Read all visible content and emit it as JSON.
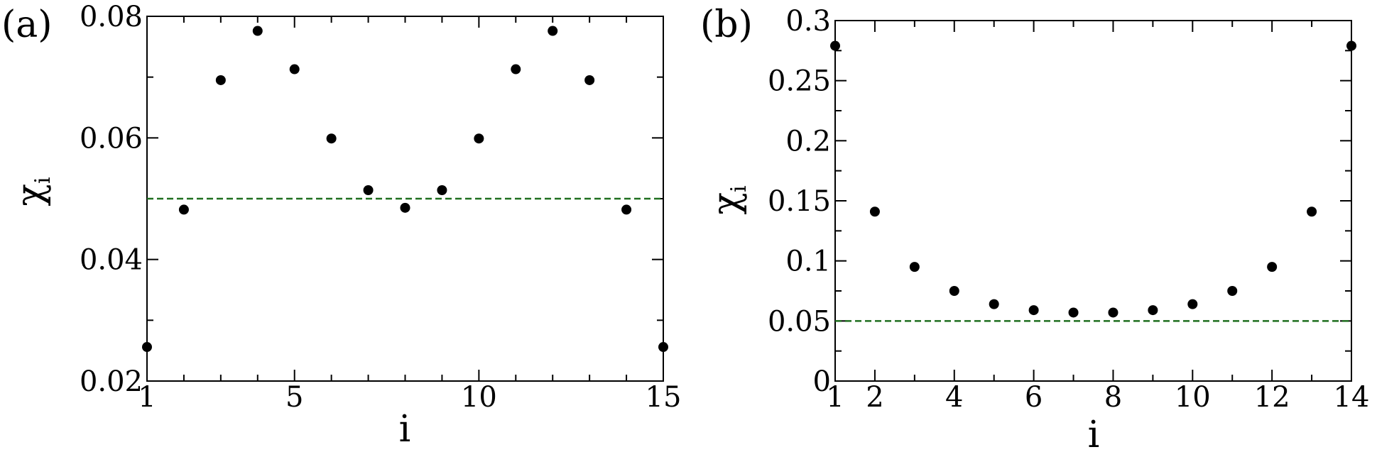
{
  "chart_data": [
    {
      "type": "scatter",
      "panel_label": "(a)",
      "xlabel": "i",
      "ylabel": {
        "symbol": "χ",
        "subscript": "i"
      },
      "xlim": [
        1,
        15
      ],
      "ylim": [
        0.02,
        0.08
      ],
      "xticks": [
        {
          "value": 1,
          "label": "1"
        },
        {
          "value": 5,
          "label": "5"
        },
        {
          "value": 10,
          "label": "10"
        },
        {
          "value": 15,
          "label": "15"
        }
      ],
      "xminor": [
        2,
        3,
        4,
        6,
        7,
        8,
        9,
        11,
        12,
        13,
        14
      ],
      "yticks": [
        {
          "value": 0.02,
          "label": "0.02"
        },
        {
          "value": 0.04,
          "label": "0.04"
        },
        {
          "value": 0.06,
          "label": "0.06"
        },
        {
          "value": 0.08,
          "label": "0.08"
        }
      ],
      "yminor": [
        0.03,
        0.05,
        0.07
      ],
      "x": [
        1,
        2,
        3,
        4,
        5,
        6,
        7,
        8,
        9,
        10,
        11,
        12,
        13,
        14,
        15
      ],
      "y": [
        0.0256,
        0.0482,
        0.0695,
        0.0776,
        0.0713,
        0.0599,
        0.0514,
        0.0485,
        0.0514,
        0.0599,
        0.0713,
        0.0776,
        0.0695,
        0.0482,
        0.0256
      ],
      "reference_line": {
        "y": 0.05,
        "color": "#1f6f1f",
        "style": "dashed"
      },
      "marker_color": "#000000"
    },
    {
      "type": "scatter",
      "panel_label": "(b)",
      "xlabel": "i",
      "ylabel": {
        "symbol": "χ",
        "subscript": "i"
      },
      "xlim": [
        1,
        14
      ],
      "ylim": [
        0,
        0.3
      ],
      "xticks": [
        {
          "value": 1,
          "label": "1"
        },
        {
          "value": 2,
          "label": "2"
        },
        {
          "value": 4,
          "label": "4"
        },
        {
          "value": 6,
          "label": "6"
        },
        {
          "value": 8,
          "label": "8"
        },
        {
          "value": 10,
          "label": "10"
        },
        {
          "value": 12,
          "label": "12"
        },
        {
          "value": 14,
          "label": "14"
        }
      ],
      "xminor": [
        3,
        5,
        7,
        9,
        11,
        13
      ],
      "yticks": [
        {
          "value": 0,
          "label": "0"
        },
        {
          "value": 0.05,
          "label": "0.05"
        },
        {
          "value": 0.1,
          "label": "0.1"
        },
        {
          "value": 0.15,
          "label": "0.15"
        },
        {
          "value": 0.2,
          "label": "0.2"
        },
        {
          "value": 0.25,
          "label": "0.25"
        },
        {
          "value": 0.3,
          "label": "0.3"
        }
      ],
      "yminor": [
        0.025,
        0.075,
        0.125,
        0.175,
        0.225,
        0.275
      ],
      "x": [
        1,
        2,
        3,
        4,
        5,
        6,
        7,
        8,
        9,
        10,
        11,
        12,
        13,
        14
      ],
      "y": [
        0.279,
        0.141,
        0.095,
        0.075,
        0.064,
        0.059,
        0.057,
        0.057,
        0.059,
        0.064,
        0.075,
        0.095,
        0.141,
        0.279
      ],
      "reference_line": {
        "y": 0.05,
        "color": "#1f6f1f",
        "style": "dashed"
      },
      "marker_color": "#000000"
    }
  ]
}
